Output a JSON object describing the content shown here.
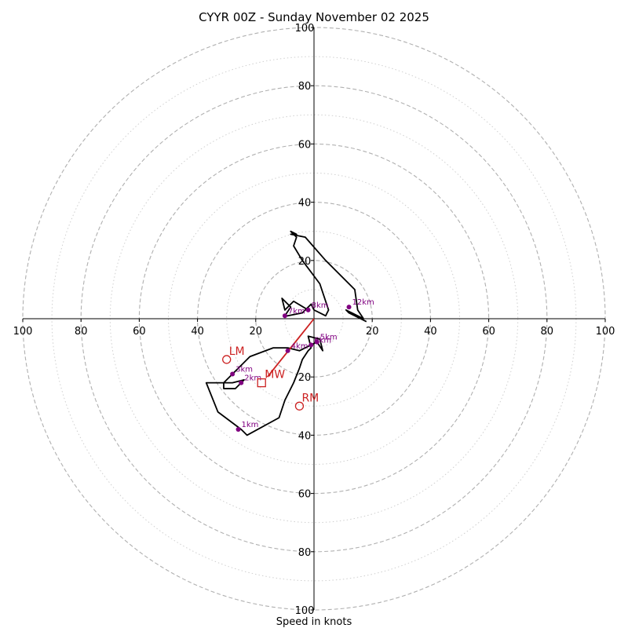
{
  "title": "CYYR 00Z - Sunday November 02 2025",
  "xlabel": "Speed in knots",
  "chart_data": {
    "type": "hodograph",
    "title": "CYYR 00Z - Sunday November 02 2025",
    "xlabel": "Speed in knots",
    "units": "knots",
    "range": [
      -100,
      100
    ],
    "ring_major": [
      20,
      40,
      60,
      80,
      100
    ],
    "ring_minor": [
      10,
      30,
      50,
      70,
      90
    ],
    "x_tick_labels": [
      "100",
      "80",
      "60",
      "40",
      "20",
      "20",
      "40",
      "60",
      "80",
      "100"
    ],
    "y_tick_labels_top": [
      "100",
      "80",
      "60",
      "40",
      "20"
    ],
    "y_tick_labels_bottom": [
      "20",
      "40",
      "60",
      "80",
      "100"
    ],
    "colors": {
      "rings": "#b0b0b0",
      "trace": "#000000",
      "heights": "#800080",
      "storm_motion": "#cc2222",
      "axes": "#000000"
    },
    "trace": [
      [
        -25,
        -38
      ],
      [
        -23,
        -40
      ],
      [
        -12,
        -34
      ],
      [
        -10,
        -28
      ],
      [
        -7,
        -22
      ],
      [
        -5,
        -17
      ],
      [
        -4,
        -14
      ],
      [
        -2,
        -11
      ],
      [
        -1,
        -10
      ],
      [
        -2,
        -6
      ],
      [
        2,
        -7
      ],
      [
        3,
        -11
      ],
      [
        1,
        -8
      ],
      [
        -5,
        -11
      ],
      [
        -9,
        -10
      ],
      [
        -14,
        -10
      ],
      [
        -22,
        -13
      ],
      [
        -28,
        -19
      ],
      [
        -30,
        -21
      ],
      [
        -31,
        -22
      ],
      [
        -31,
        -24
      ],
      [
        -27,
        -24
      ],
      [
        -24,
        -21
      ],
      [
        -28,
        -22
      ],
      [
        -37,
        -22
      ],
      [
        -33,
        -32
      ],
      [
        -25,
        -38
      ]
    ],
    "trace_upper": [
      [
        -2,
        3
      ],
      [
        -7,
        6
      ],
      [
        -10,
        3
      ],
      [
        -11,
        7
      ],
      [
        -8,
        4
      ],
      [
        -10,
        1
      ],
      [
        -9,
        1
      ],
      [
        -4,
        2
      ],
      [
        -1,
        5
      ],
      [
        0,
        3
      ],
      [
        2,
        2
      ],
      [
        4,
        1
      ],
      [
        5,
        3
      ],
      [
        2,
        12
      ],
      [
        -4,
        20
      ],
      [
        -7,
        25
      ],
      [
        -6,
        28
      ],
      [
        -8,
        30
      ],
      [
        -6,
        29
      ],
      [
        -8,
        29
      ],
      [
        -3,
        28
      ],
      [
        4,
        20
      ],
      [
        14,
        10
      ],
      [
        15,
        3
      ],
      [
        17,
        0
      ],
      [
        15,
        1
      ],
      [
        11,
        3
      ],
      [
        12,
        2
      ],
      [
        18,
        -1
      ]
    ],
    "height_points": [
      {
        "label": "1km",
        "u": -26,
        "v": -38
      },
      {
        "label": "2km",
        "u": -25,
        "v": -22
      },
      {
        "label": "3km",
        "u": -28,
        "v": -19
      },
      {
        "label": "4km",
        "u": -9,
        "v": -11
      },
      {
        "label": "5km",
        "u": 1,
        "v": -8
      },
      {
        "label": "6km",
        "u": -1,
        "v": -9
      },
      {
        "label": "7km",
        "u": -10,
        "v": 1
      },
      {
        "label": "8km",
        "u": -2,
        "v": 3
      },
      {
        "label": "12km",
        "u": 12,
        "v": 4
      }
    ],
    "mean_wind": {
      "label": "MW",
      "u": -18,
      "v": -22
    },
    "left_mover": {
      "label": "LM",
      "u": -30,
      "v": -14
    },
    "right_mover": {
      "label": "RM",
      "u": -5,
      "v": -30
    }
  }
}
